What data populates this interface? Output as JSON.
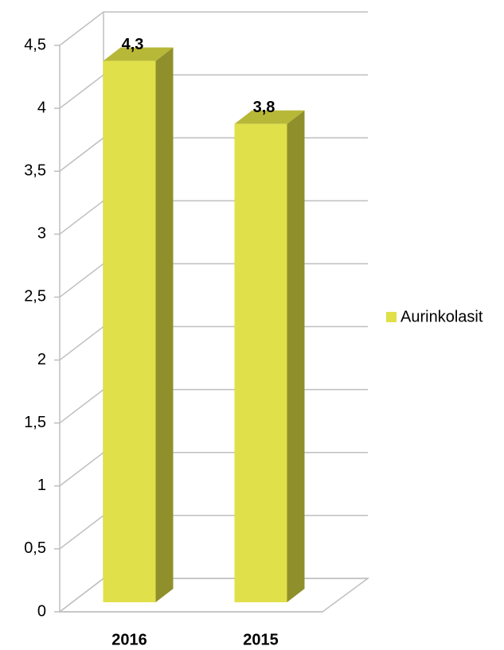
{
  "chart_data": {
    "type": "bar3d",
    "categories": [
      "2016",
      "2015"
    ],
    "series": [
      {
        "name": "Aurinkolasit",
        "color": "#e0e04a",
        "values": [
          4.3,
          3.8
        ],
        "value_labels": [
          "4,3",
          "3,8"
        ]
      }
    ],
    "ylim": [
      0,
      4.5
    ],
    "yticks": [
      0,
      {
        "value": 0.5,
        "label": "0,5"
      },
      1,
      {
        "value": 1.5,
        "label": "1,5"
      },
      2,
      {
        "value": 2.5,
        "label": "2,5"
      },
      3,
      {
        "value": 3.5,
        "label": "3,5"
      },
      4,
      {
        "value": 4.5,
        "label": "4,5"
      }
    ],
    "grid": true,
    "legend": "right"
  }
}
